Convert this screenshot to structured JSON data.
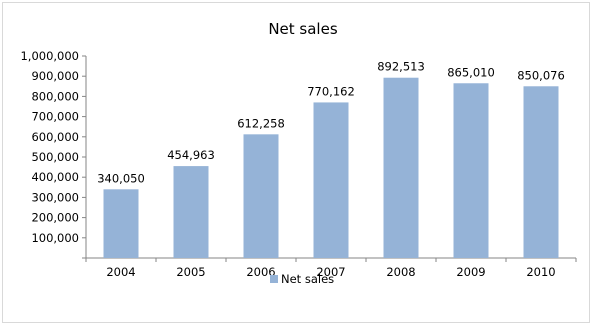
{
  "chart_data": {
    "type": "bar",
    "title": "Net sales",
    "categories": [
      "2004",
      "2005",
      "2006",
      "2007",
      "2008",
      "2009",
      "2010"
    ],
    "series": [
      {
        "name": "Net sales",
        "values": [
          340050,
          454963,
          612258,
          770162,
          892513,
          865010,
          850076
        ],
        "value_labels": [
          "340,050",
          "454,963",
          "612,258",
          "770,162",
          "892,513",
          "865,010",
          "850,076"
        ],
        "color": "#95b3d7"
      }
    ],
    "xlabel": "",
    "ylabel": "",
    "ylim": [
      0,
      1000000
    ],
    "yticks": [
      100000,
      200000,
      300000,
      400000,
      500000,
      600000,
      700000,
      800000,
      900000,
      1000000
    ],
    "ytick_labels": [
      "100,000",
      "200,000",
      "300,000",
      "400,000",
      "500,000",
      "600,000",
      "700,000",
      "800,000",
      "900,000",
      "1,000,000"
    ],
    "grid": false,
    "legend": "bottom",
    "axis_color": "#868686"
  }
}
